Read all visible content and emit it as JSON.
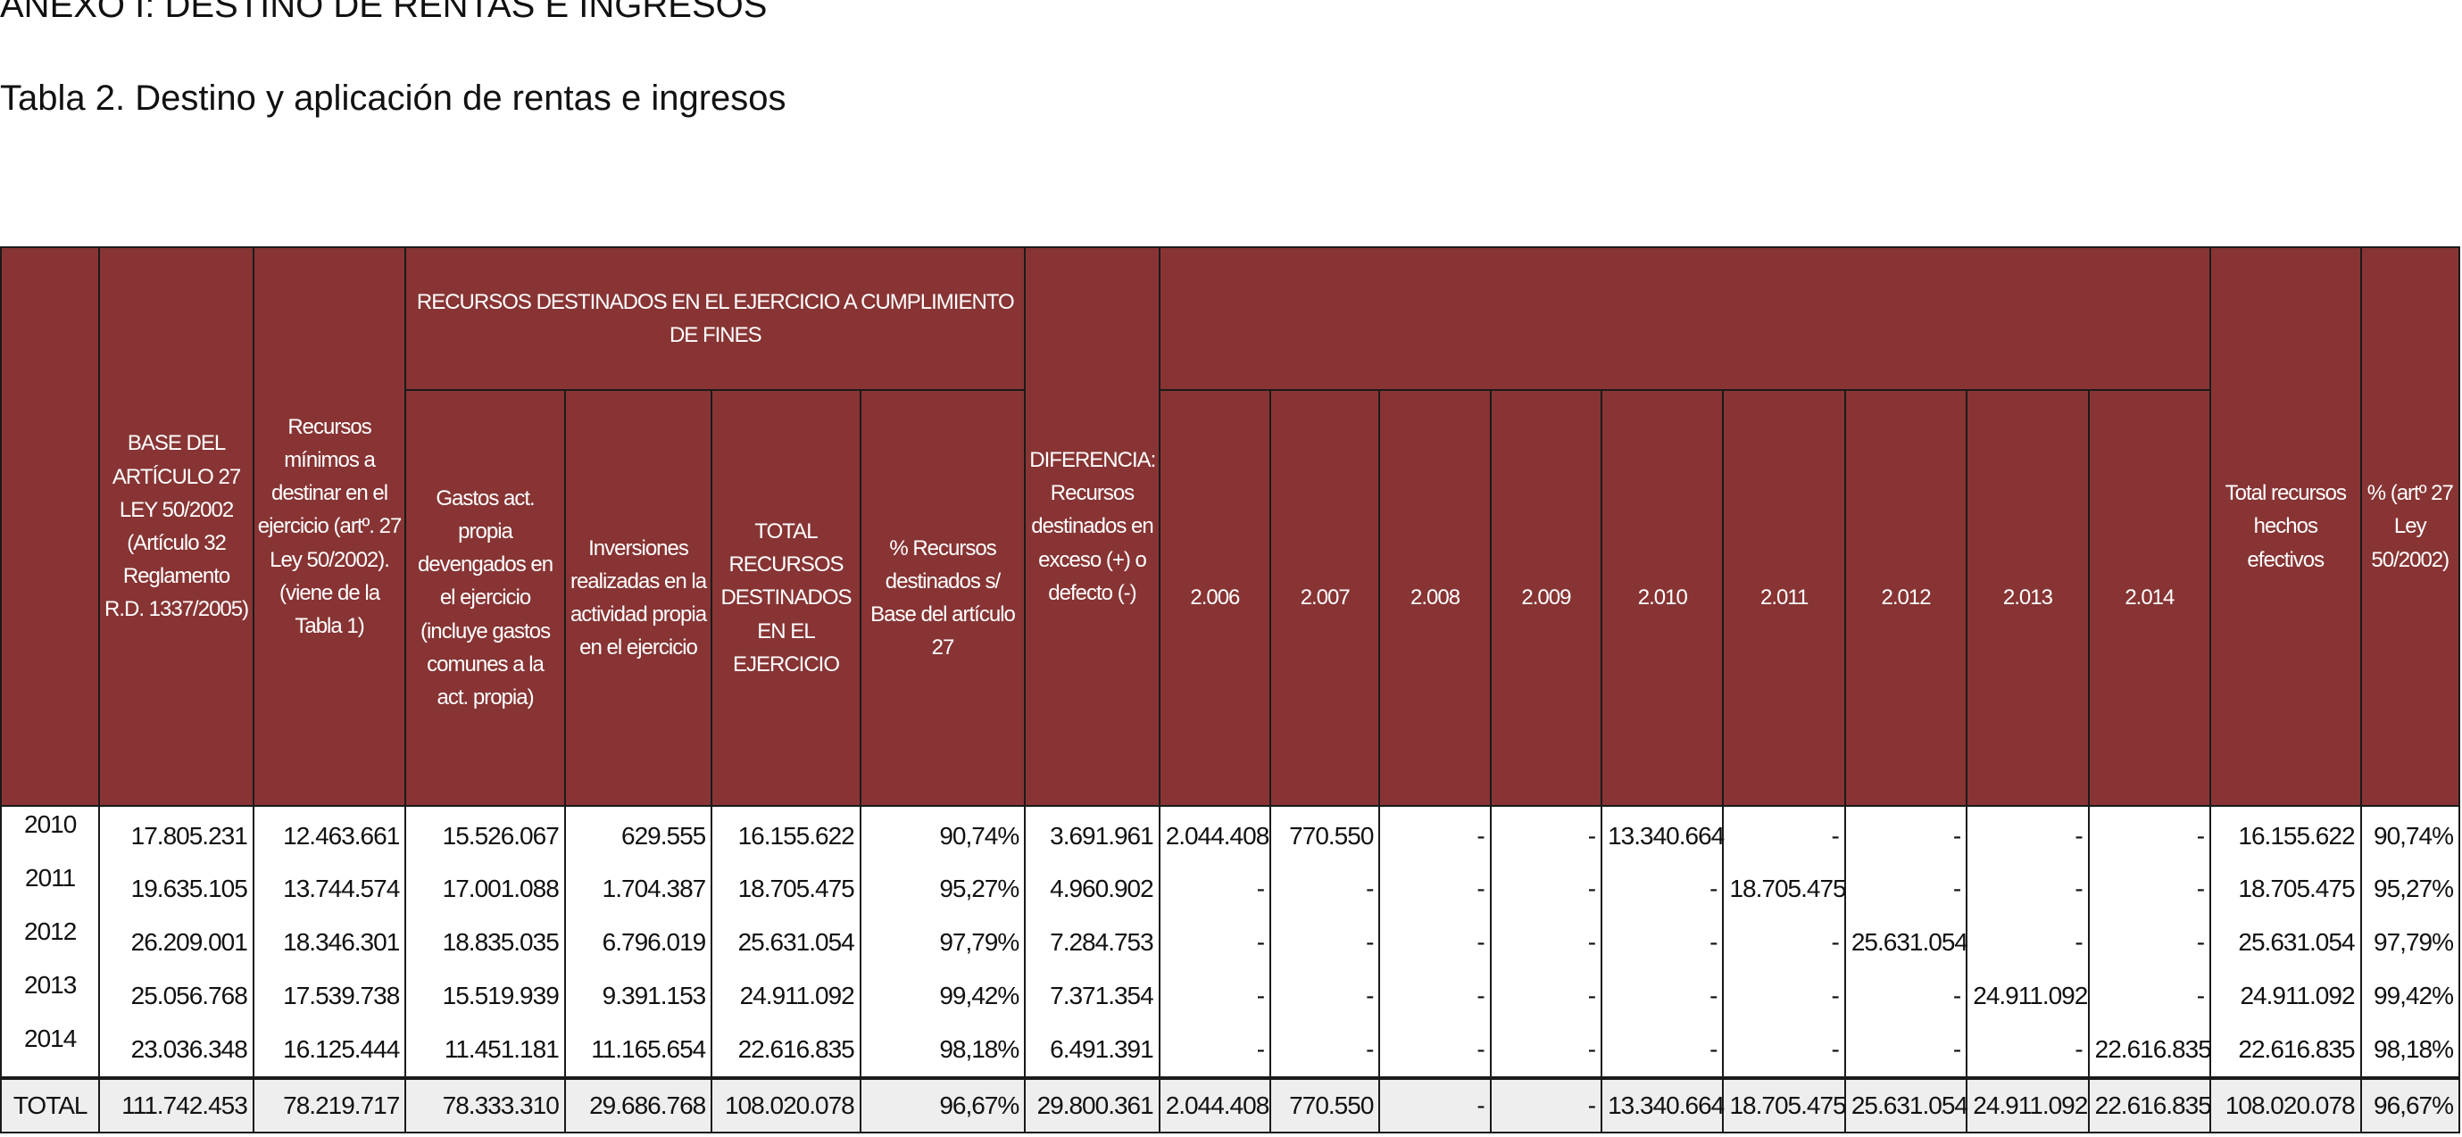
{
  "page": {
    "anexo_title": "ANEXO I: DESTINO DE RENTAS E INGRESOS",
    "table_title": "Tabla 2. Destino y aplicación de rentas e ingresos"
  },
  "table": {
    "headers": {
      "base": "BASE DEL ARTÍCULO 27 LEY 50/2002 (Artículo 32 Reglamento R.D. 1337/2005)",
      "minimos": "Recursos mínimos a destinar en el ejercicio (artº. 27 Ley 50/2002). (viene de la Tabla 1)",
      "recursos_group": "RECURSOS DESTINADOS EN EL EJERCICIO A CUMPLIMIENTO DE FINES",
      "gastos": "Gastos act. propia devengados en el ejercicio (incluye gastos comunes a la act. propia)",
      "inversiones": "Inversiones realizadas en la actividad propia en el ejercicio",
      "total_recursos": "TOTAL RECURSOS DESTINADOS EN EL EJERCICIO",
      "pct_recursos": "% Recursos destinados s/ Base del artículo 27",
      "diferencia": "DIFERENCIA: Recursos destinados en exceso (+) o defecto (-)",
      "years_group": "",
      "years": [
        "2.006",
        "2.007",
        "2.008",
        "2.009",
        "2.010",
        "2.011",
        "2.012",
        "2.013",
        "2.014"
      ],
      "total_hechos": "Total recursos hechos efectivos",
      "pct_art": "% (artº 27 Ley 50/2002)"
    },
    "rows": [
      [
        "2010",
        "17.805.231",
        "12.463.661",
        "15.526.067",
        "629.555",
        "16.155.622",
        "90,74%",
        "3.691.961",
        "2.044.408",
        "770.550",
        "-",
        "-",
        "13.340.664",
        "-",
        "-",
        "-",
        "-",
        "16.155.622",
        "90,74%"
      ],
      [
        "2011",
        "19.635.105",
        "13.744.574",
        "17.001.088",
        "1.704.387",
        "18.705.475",
        "95,27%",
        "4.960.902",
        "-",
        "-",
        "-",
        "-",
        "-",
        "18.705.475",
        "-",
        "-",
        "-",
        "18.705.475",
        "95,27%"
      ],
      [
        "2012",
        "26.209.001",
        "18.346.301",
        "18.835.035",
        "6.796.019",
        "25.631.054",
        "97,79%",
        "7.284.753",
        "-",
        "-",
        "-",
        "-",
        "-",
        "-",
        "25.631.054",
        "-",
        "-",
        "25.631.054",
        "97,79%"
      ],
      [
        "2013",
        "25.056.768",
        "17.539.738",
        "15.519.939",
        "9.391.153",
        "24.911.092",
        "99,42%",
        "7.371.354",
        "-",
        "-",
        "-",
        "-",
        "-",
        "-",
        "-",
        "24.911.092",
        "-",
        "24.911.092",
        "99,42%"
      ],
      [
        "2014",
        "23.036.348",
        "16.125.444",
        "11.451.181",
        "11.165.654",
        "22.616.835",
        "98,18%",
        "6.491.391",
        "-",
        "-",
        "-",
        "-",
        "-",
        "-",
        "-",
        "-",
        "22.616.835",
        "22.616.835",
        "98,18%"
      ]
    ],
    "total_row": [
      "TOTAL",
      "111.742.453",
      "78.219.717",
      "78.333.310",
      "29.686.768",
      "108.020.078",
      "96,67%",
      "29.800.361",
      "2.044.408",
      "770.550",
      "-",
      "-",
      "13.340.664",
      "18.705.475",
      "25.631.054",
      "24.911.092",
      "22.616.835",
      "108.020.078",
      "96,67%"
    ]
  }
}
